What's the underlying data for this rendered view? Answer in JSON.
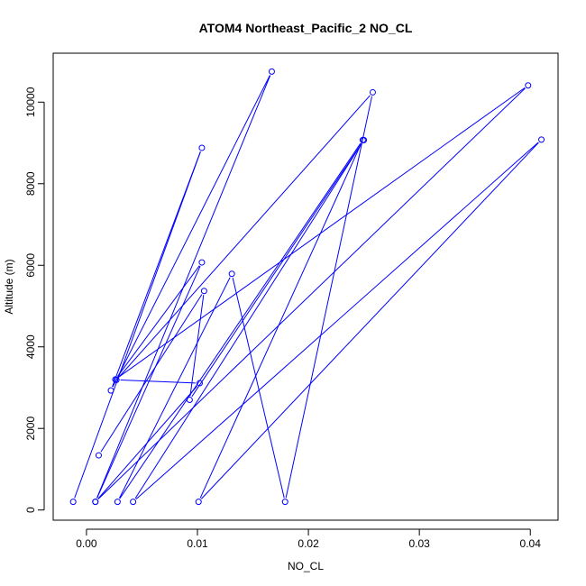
{
  "chart_data": {
    "type": "line",
    "title": "ATOM4 Northeast_Pacific_2 NO_CL",
    "xlabel": "NO_CL",
    "ylabel": "Altitude (m)",
    "xlim": [
      -0.003,
      0.0425
    ],
    "ylim": [
      -250,
      11200
    ],
    "xticks": [
      0.0,
      0.01,
      0.02,
      0.03,
      0.04
    ],
    "xtick_labels": [
      "0.00",
      "0.01",
      "0.02",
      "0.03",
      "0.04"
    ],
    "yticks": [
      0,
      2000,
      4000,
      6000,
      8000,
      10000
    ],
    "ytick_labels": [
      "0",
      "2000",
      "4000",
      "6000",
      "8000",
      "10000"
    ],
    "grid": false,
    "color": "#0000ff",
    "series": [
      {
        "x": [
          -0.0012,
          0.0104,
          0.0022,
          0.0167,
          0.0008,
          0.0104,
          0.0026,
          0.0398,
          0.0008,
          0.0102,
          0.0027,
          0.0258,
          0.0179,
          0.0131,
          0.0028,
          0.0249,
          0.0101,
          0.041,
          0.0042,
          0.025,
          0.0093,
          0.0106,
          0.0011
        ],
        "y": [
          200,
          8880,
          2930,
          10750,
          200,
          6070,
          3200,
          10410,
          200,
          3110,
          3190,
          10240,
          200,
          5790,
          200,
          9070,
          200,
          9080,
          200,
          9070,
          2700,
          5370,
          1340
        ]
      }
    ]
  }
}
